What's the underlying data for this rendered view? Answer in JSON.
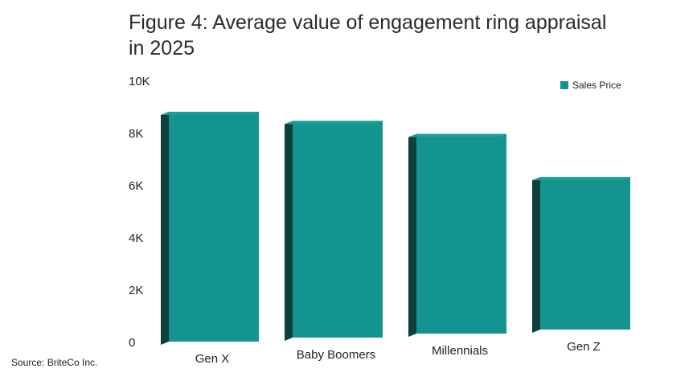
{
  "title": "Figure 4: Average value of engagement ring appraisal in 2025",
  "source": "Source: BriteCo Inc.",
  "colors": {
    "bar_front": "#149490",
    "bar_side": "#0f3f3b",
    "bar_top": "#1a9e98"
  },
  "chart_data": {
    "type": "bar",
    "categories": [
      "Gen X",
      "Baby Boomers",
      "Millennials",
      "Gen Z"
    ],
    "series": [
      {
        "name": "Sales Price",
        "values": [
          8800,
          8450,
          7950,
          6300
        ]
      }
    ],
    "ylim": [
      0,
      10000
    ],
    "yticks": [
      0,
      2000,
      4000,
      6000,
      8000,
      10000
    ],
    "ytick_labels": [
      "0",
      "2K",
      "4K",
      "6K",
      "8K",
      "10K"
    ],
    "legend": "top-right",
    "grid": false,
    "title": "Figure 4: Average value of engagement ring appraisal in 2025",
    "xlabel": "",
    "ylabel": ""
  }
}
